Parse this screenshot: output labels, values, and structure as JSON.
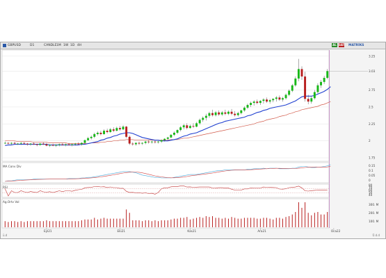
{
  "toolbar": {
    "symbol": "GBPUSD",
    "period": "D1",
    "type": "CANDLE",
    "timeframe_buttons": [
      "1M",
      "1W",
      "1D",
      "4H"
    ],
    "right_buttons": [
      {
        "label": "AL",
        "color": "#2a8a2a"
      },
      {
        "label": "SAT",
        "color": "#b81f1f"
      }
    ],
    "right_text": "MATRİKS"
  },
  "panels": {
    "price": {
      "label": ""
    },
    "macd": {
      "label": "MA Conv Div"
    },
    "rsi": {
      "label": "RSI"
    },
    "volume": {
      "label": "Ag.Ortv Vol"
    }
  },
  "colors": {
    "up": "#18b818",
    "down": "#b81f1f",
    "ma_short": "#1f3fd0",
    "ma_long": "#d25a4a",
    "grid": "#dcdcdc",
    "cursor": "#b060b0"
  },
  "status": {
    "left": "ü.d",
    "right": "Ü.d.d"
  },
  "chart_data": {
    "type": "candlestick",
    "price_axis": [
      "3.25",
      "3.03",
      "2.75",
      "2.5",
      "2.25",
      "2",
      "1.75"
    ],
    "price_ylim": [
      1.72,
      3.32
    ],
    "time_labels": [
      "Eyl21",
      "Eki21",
      "Kas21",
      "Ara21",
      "Oca22"
    ],
    "time_label_index": [
      13,
      36,
      58,
      80,
      103
    ],
    "current_price": "3.03",
    "candles": [
      [
        1.97,
        1.99,
        1.95,
        1.97
      ],
      [
        1.97,
        1.98,
        1.95,
        1.96
      ],
      [
        1.96,
        1.98,
        1.94,
        1.97
      ],
      [
        1.97,
        1.99,
        1.95,
        1.96
      ],
      [
        1.96,
        1.97,
        1.94,
        1.96
      ],
      [
        1.96,
        1.98,
        1.94,
        1.97
      ],
      [
        1.97,
        1.98,
        1.95,
        1.96
      ],
      [
        1.96,
        1.97,
        1.93,
        1.95
      ],
      [
        1.95,
        1.97,
        1.93,
        1.96
      ],
      [
        1.96,
        1.98,
        1.94,
        1.95
      ],
      [
        1.95,
        1.96,
        1.92,
        1.94
      ],
      [
        1.94,
        1.97,
        1.93,
        1.96
      ],
      [
        1.96,
        1.98,
        1.94,
        1.95
      ],
      [
        1.95,
        1.97,
        1.92,
        1.93
      ],
      [
        1.93,
        1.95,
        1.91,
        1.94
      ],
      [
        1.94,
        1.96,
        1.92,
        1.93
      ],
      [
        1.93,
        1.95,
        1.91,
        1.94
      ],
      [
        1.94,
        1.96,
        1.92,
        1.95
      ],
      [
        1.95,
        1.97,
        1.93,
        1.94
      ],
      [
        1.94,
        1.96,
        1.92,
        1.95
      ],
      [
        1.95,
        1.97,
        1.93,
        1.94
      ],
      [
        1.94,
        1.96,
        1.92,
        1.95
      ],
      [
        1.95,
        1.97,
        1.93,
        1.96
      ],
      [
        1.96,
        1.98,
        1.94,
        1.95
      ],
      [
        1.95,
        1.98,
        1.93,
        1.97
      ],
      [
        1.97,
        2.02,
        1.96,
        2.01
      ],
      [
        2.01,
        2.06,
        2.0,
        2.04
      ],
      [
        2.04,
        2.08,
        2.02,
        2.06
      ],
      [
        2.06,
        2.12,
        2.04,
        2.1
      ],
      [
        2.1,
        2.14,
        2.08,
        2.12
      ],
      [
        2.12,
        2.15,
        2.08,
        2.1
      ],
      [
        2.1,
        2.17,
        2.09,
        2.15
      ],
      [
        2.15,
        2.18,
        2.11,
        2.13
      ],
      [
        2.13,
        2.19,
        2.12,
        2.17
      ],
      [
        2.17,
        2.2,
        2.13,
        2.15
      ],
      [
        2.15,
        2.21,
        2.14,
        2.19
      ],
      [
        2.19,
        2.22,
        2.15,
        2.17
      ],
      [
        2.17,
        2.23,
        2.16,
        2.21
      ],
      [
        2.21,
        2.22,
        2.04,
        2.06
      ],
      [
        2.06,
        2.08,
        1.94,
        1.96
      ],
      [
        1.96,
        1.98,
        1.93,
        1.95
      ],
      [
        1.95,
        1.98,
        1.93,
        1.97
      ],
      [
        1.97,
        1.99,
        1.94,
        1.96
      ],
      [
        1.96,
        1.98,
        1.94,
        1.97
      ],
      [
        1.97,
        2.0,
        1.95,
        1.99
      ],
      [
        1.99,
        2.01,
        1.96,
        1.98
      ],
      [
        1.98,
        2.0,
        1.96,
        1.99
      ],
      [
        1.99,
        2.01,
        1.96,
        1.98
      ],
      [
        1.98,
        2.0,
        1.96,
        1.99
      ],
      [
        1.99,
        2.02,
        1.97,
        2.01
      ],
      [
        2.01,
        2.04,
        1.99,
        2.03
      ],
      [
        2.03,
        2.06,
        2.01,
        2.05
      ],
      [
        2.05,
        2.1,
        2.04,
        2.09
      ],
      [
        2.09,
        2.14,
        2.07,
        2.12
      ],
      [
        2.12,
        2.17,
        2.1,
        2.16
      ],
      [
        2.16,
        2.22,
        2.14,
        2.2
      ],
      [
        2.2,
        2.25,
        2.17,
        2.23
      ],
      [
        2.23,
        2.26,
        2.17,
        2.19
      ],
      [
        2.19,
        2.24,
        2.18,
        2.22
      ],
      [
        2.22,
        2.26,
        2.19,
        2.21
      ],
      [
        2.21,
        2.28,
        2.2,
        2.26
      ],
      [
        2.26,
        2.33,
        2.24,
        2.31
      ],
      [
        2.31,
        2.36,
        2.28,
        2.34
      ],
      [
        2.34,
        2.4,
        2.3,
        2.37
      ],
      [
        2.37,
        2.43,
        2.34,
        2.41
      ],
      [
        2.41,
        2.46,
        2.36,
        2.38
      ],
      [
        2.38,
        2.44,
        2.36,
        2.42
      ],
      [
        2.42,
        2.45,
        2.37,
        2.39
      ],
      [
        2.39,
        2.44,
        2.37,
        2.42
      ],
      [
        2.42,
        2.46,
        2.38,
        2.4
      ],
      [
        2.4,
        2.45,
        2.38,
        2.43
      ],
      [
        2.43,
        2.47,
        2.38,
        2.4
      ],
      [
        2.4,
        2.44,
        2.36,
        2.38
      ],
      [
        2.38,
        2.43,
        2.36,
        2.41
      ],
      [
        2.41,
        2.46,
        2.39,
        2.45
      ],
      [
        2.45,
        2.51,
        2.43,
        2.49
      ],
      [
        2.49,
        2.55,
        2.47,
        2.53
      ],
      [
        2.53,
        2.58,
        2.5,
        2.56
      ],
      [
        2.56,
        2.6,
        2.52,
        2.58
      ],
      [
        2.58,
        2.61,
        2.54,
        2.56
      ],
      [
        2.56,
        2.6,
        2.53,
        2.59
      ],
      [
        2.59,
        2.63,
        2.55,
        2.61
      ],
      [
        2.61,
        2.64,
        2.56,
        2.58
      ],
      [
        2.58,
        2.62,
        2.55,
        2.6
      ],
      [
        2.6,
        2.63,
        2.57,
        2.62
      ],
      [
        2.62,
        2.66,
        2.58,
        2.64
      ],
      [
        2.64,
        2.67,
        2.59,
        2.61
      ],
      [
        2.61,
        2.65,
        2.58,
        2.63
      ],
      [
        2.63,
        2.7,
        2.61,
        2.68
      ],
      [
        2.68,
        2.76,
        2.66,
        2.74
      ],
      [
        2.74,
        2.84,
        2.72,
        2.82
      ],
      [
        2.82,
        2.95,
        2.8,
        2.92
      ],
      [
        2.92,
        3.21,
        2.88,
        3.06
      ],
      [
        3.06,
        3.1,
        2.9,
        2.95
      ],
      [
        2.95,
        3.02,
        2.58,
        2.62
      ],
      [
        2.62,
        2.68,
        2.54,
        2.58
      ],
      [
        2.58,
        2.66,
        2.55,
        2.63
      ],
      [
        2.63,
        2.75,
        2.61,
        2.72
      ],
      [
        2.72,
        2.85,
        2.7,
        2.82
      ],
      [
        2.82,
        2.9,
        2.78,
        2.87
      ],
      [
        2.87,
        2.96,
        2.84,
        2.93
      ],
      [
        2.93,
        3.06,
        2.91,
        3.03
      ]
    ],
    "ma_short": [
      1.93,
      1.94,
      1.94,
      1.95,
      1.95,
      1.95,
      1.95,
      1.95,
      1.95,
      1.95,
      1.95,
      1.95,
      1.95,
      1.95,
      1.94,
      1.94,
      1.94,
      1.94,
      1.94,
      1.94,
      1.94,
      1.94,
      1.94,
      1.94,
      1.95,
      1.95,
      1.96,
      1.97,
      1.98,
      1.99,
      2.01,
      2.02,
      2.04,
      2.05,
      2.07,
      2.08,
      2.1,
      2.11,
      2.12,
      2.12,
      2.11,
      2.09,
      2.07,
      2.05,
      2.04,
      2.03,
      2.02,
      2.01,
      2.01,
      2.0,
      2.0,
      2.0,
      2.01,
      2.02,
      2.03,
      2.05,
      2.07,
      2.08,
      2.1,
      2.11,
      2.12,
      2.14,
      2.16,
      2.18,
      2.2,
      2.22,
      2.24,
      2.26,
      2.27,
      2.29,
      2.3,
      2.31,
      2.32,
      2.33,
      2.34,
      2.35,
      2.37,
      2.38,
      2.4,
      2.42,
      2.43,
      2.45,
      2.46,
      2.48,
      2.49,
      2.5,
      2.51,
      2.52,
      2.53,
      2.55,
      2.57,
      2.59,
      2.62,
      2.65,
      2.66,
      2.66,
      2.66,
      2.67,
      2.69,
      2.71,
      2.73,
      2.76,
      2.8
    ],
    "ma_long": [
      2.0,
      2.0,
      2.0,
      2.0,
      1.99,
      1.99,
      1.99,
      1.99,
      1.99,
      1.98,
      1.98,
      1.98,
      1.98,
      1.98,
      1.97,
      1.97,
      1.97,
      1.97,
      1.97,
      1.97,
      1.96,
      1.96,
      1.96,
      1.96,
      1.96,
      1.96,
      1.96,
      1.97,
      1.97,
      1.97,
      1.98,
      1.98,
      1.99,
      1.99,
      2.0,
      2.0,
      2.01,
      2.01,
      2.02,
      2.02,
      2.02,
      2.01,
      2.01,
      2.01,
      2.01,
      2.01,
      2.01,
      2.01,
      2.01,
      2.01,
      2.01,
      2.01,
      2.02,
      2.02,
      2.02,
      2.03,
      2.04,
      2.04,
      2.05,
      2.06,
      2.07,
      2.08,
      2.09,
      2.1,
      2.11,
      2.12,
      2.13,
      2.14,
      2.15,
      2.16,
      2.17,
      2.18,
      2.19,
      2.2,
      2.21,
      2.22,
      2.23,
      2.24,
      2.25,
      2.27,
      2.28,
      2.29,
      2.31,
      2.32,
      2.33,
      2.34,
      2.36,
      2.37,
      2.38,
      2.4,
      2.41,
      2.43,
      2.44,
      2.46,
      2.47,
      2.48,
      2.49,
      2.5,
      2.51,
      2.53,
      2.54,
      2.56,
      2.58
    ]
  }
}
